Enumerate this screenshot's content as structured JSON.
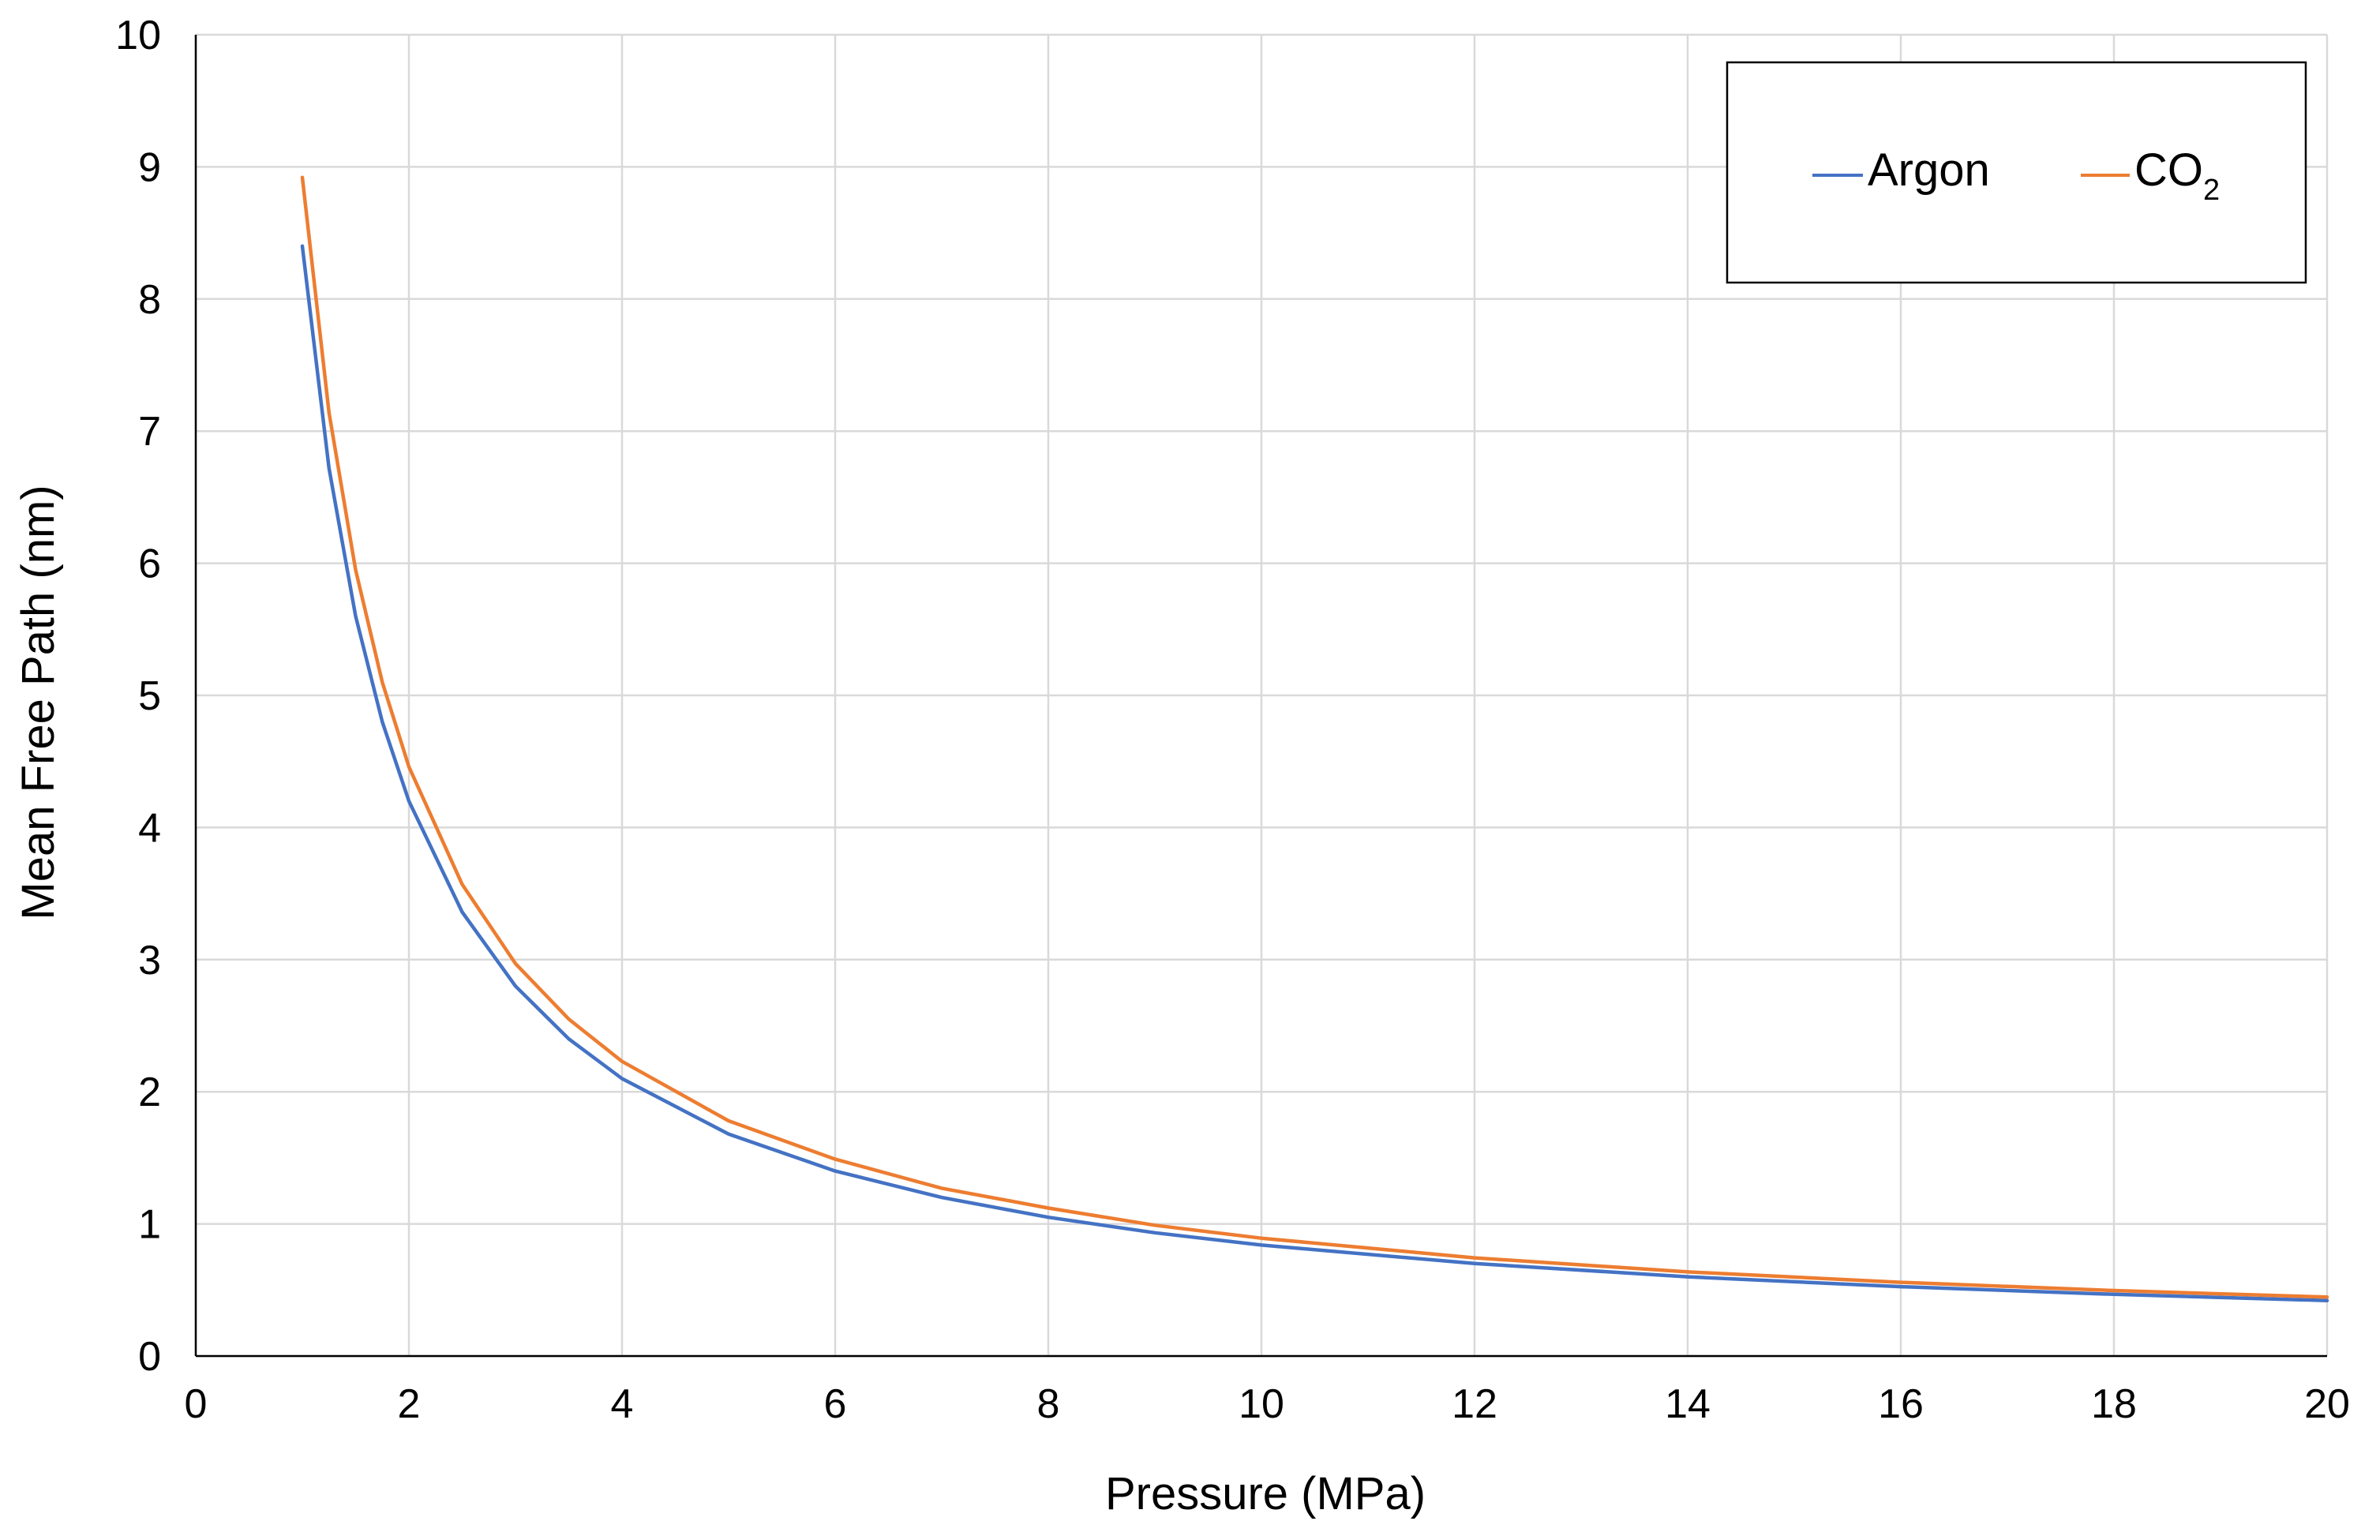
{
  "chart_data": {
    "type": "line",
    "xlabel": "Pressure (MPa)",
    "ylabel": "Mean Free Path (nm)",
    "xlim": [
      0,
      20
    ],
    "ylim": [
      0,
      10
    ],
    "x_ticks": [
      0,
      2,
      4,
      6,
      8,
      10,
      12,
      14,
      16,
      18,
      20
    ],
    "y_ticks": [
      0,
      1,
      2,
      3,
      4,
      5,
      6,
      7,
      8,
      9,
      10
    ],
    "grid": true,
    "legend_position": "top-right",
    "series": [
      {
        "name": "Argon",
        "legend_main": "Argon",
        "legend_sub": "",
        "color": "#4472C4",
        "x": [
          1,
          1.25,
          1.5,
          1.75,
          2,
          2.5,
          3,
          3.5,
          4,
          5,
          6,
          7,
          8,
          9,
          10,
          12,
          14,
          16,
          18,
          20
        ],
        "y": [
          8.4,
          6.72,
          5.6,
          4.8,
          4.2,
          3.36,
          2.8,
          2.4,
          2.1,
          1.68,
          1.4,
          1.2,
          1.05,
          0.933,
          0.84,
          0.7,
          0.6,
          0.525,
          0.467,
          0.42
        ]
      },
      {
        "name": "CO2",
        "legend_main": "CO",
        "legend_sub": "2",
        "color": "#ED7D31",
        "x": [
          1,
          1.25,
          1.5,
          1.75,
          2,
          2.5,
          3,
          3.5,
          4,
          5,
          6,
          7,
          8,
          9,
          10,
          12,
          14,
          16,
          18,
          20
        ],
        "y": [
          8.92,
          7.14,
          5.95,
          5.1,
          4.46,
          3.57,
          2.97,
          2.55,
          2.23,
          1.78,
          1.49,
          1.27,
          1.12,
          0.99,
          0.892,
          0.743,
          0.637,
          0.558,
          0.496,
          0.446
        ]
      }
    ]
  }
}
